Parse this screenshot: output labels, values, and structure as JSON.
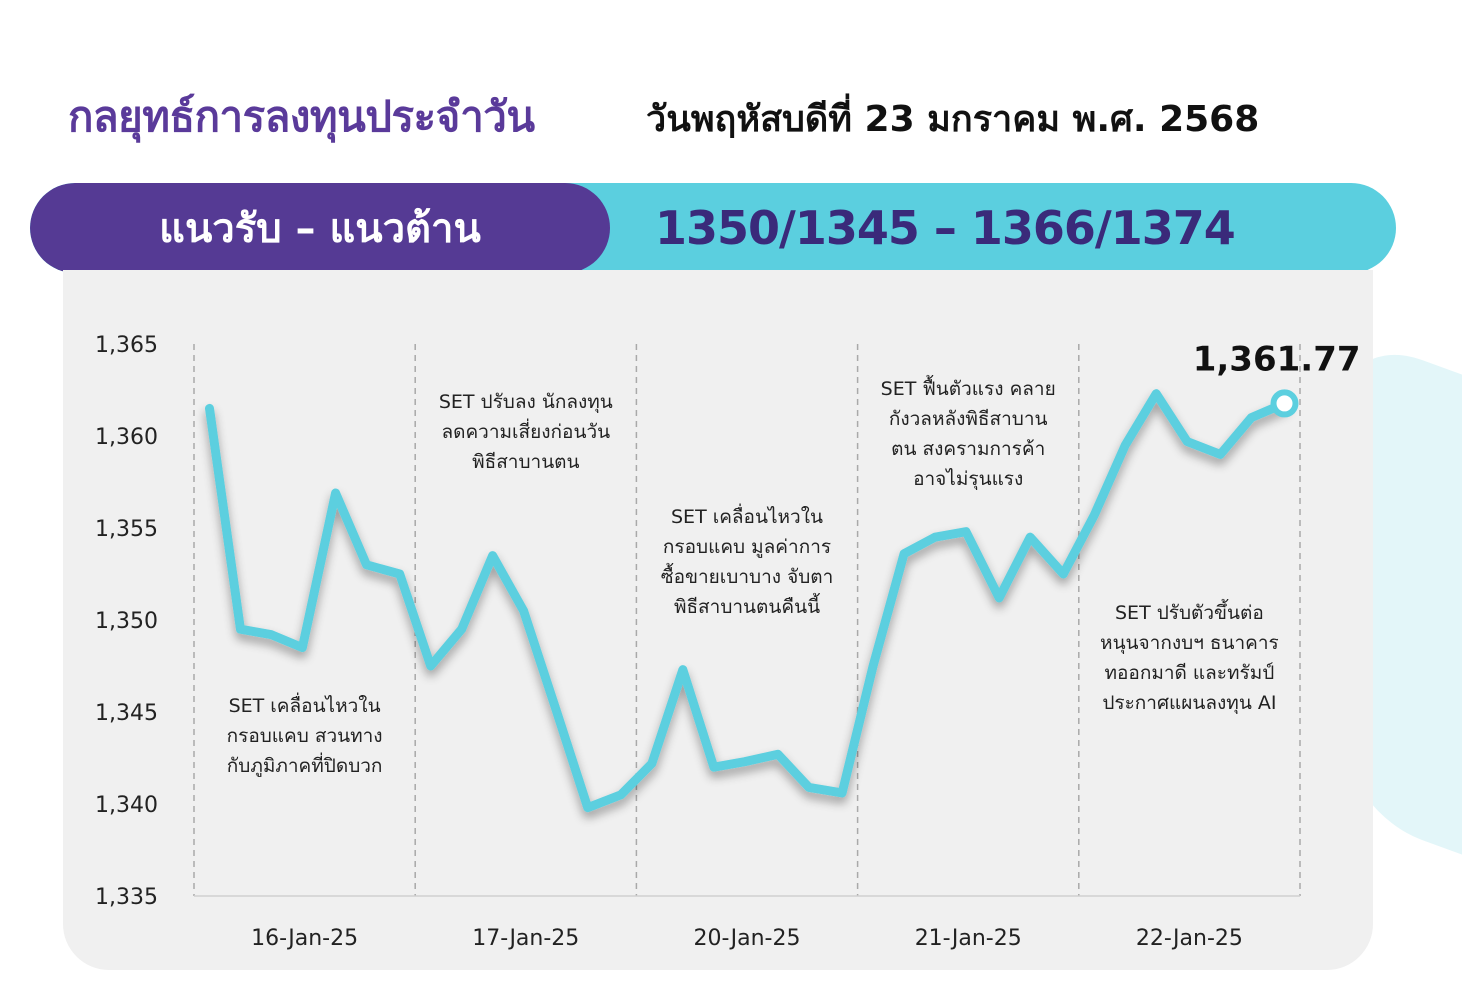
{
  "header": {
    "title": "กลยุทธ์การลงทุนประจำวัน",
    "date": "วันพฤหัสบดีที่ 23 มกราคม พ.ศ. 2568"
  },
  "band": {
    "label": "แนวรับ – แนวต้าน",
    "value": "1350/1345 – 1366/1374"
  },
  "colors": {
    "purple": "#553a94",
    "title_purple": "#5a3a9a",
    "cyan": "#5bcfdf",
    "line": "#5ccfdf",
    "panel": "#f0f0f0"
  },
  "chart_data": {
    "type": "line",
    "ylim": [
      1335,
      1365
    ],
    "yticks": [
      1365,
      1360,
      1355,
      1350,
      1345,
      1340,
      1335
    ],
    "ytick_labels": [
      "1,365",
      "1,360",
      "1,355",
      "1,350",
      "1,345",
      "1,340",
      "1,335"
    ],
    "categories": [
      "16-Jan-25",
      "17-Jan-25",
      "20-Jan-25",
      "21-Jan-25",
      "22-Jan-25"
    ],
    "grid": "vertical dashed separators between days",
    "series": [
      {
        "values": [
          1361.5,
          1349.5,
          1349.2,
          1348.5,
          1356.9,
          1353.0,
          1352.5,
          1347.5,
          1349.5,
          1353.5,
          1350.5,
          1345.0,
          1339.8,
          1340.5,
          1342.2,
          1347.3,
          1342.0,
          1342.3,
          1342.7,
          1340.9,
          1340.6,
          1347.5,
          1353.6,
          1354.5,
          1354.8,
          1351.2,
          1354.5,
          1352.5,
          1355.7,
          1359.5,
          1362.3,
          1359.7,
          1359.0,
          1361.0,
          1361.77
        ],
        "x": [
          0.07,
          0.21,
          0.35,
          0.49,
          0.64,
          0.78,
          0.93,
          1.07,
          1.21,
          1.35,
          1.49,
          1.64,
          1.78,
          1.93,
          2.07,
          2.21,
          2.35,
          2.49,
          2.64,
          2.78,
          2.93,
          3.07,
          3.21,
          3.35,
          3.49,
          3.64,
          3.78,
          3.93,
          4.07,
          4.21,
          4.35,
          4.49,
          4.64,
          4.78,
          4.93
        ]
      }
    ],
    "last_value_label": "1,361.77",
    "annotations": [
      {
        "lines": [
          "SET เคลื่อนไหวใน",
          "กรอบแคบ สวนทาง",
          "กับภูมิภาคที่ปิดบวก"
        ]
      },
      {
        "lines": [
          "SET ปรับลง นักลงทุน",
          "ลดความเสี่ยงก่อนวัน",
          "พิธีสาบานตน"
        ]
      },
      {
        "lines": [
          "SET เคลื่อนไหวใน",
          "กรอบแคบ มูลค่าการ",
          "ซื้อขายเบาบาง จับตา",
          "พิธีสาบานตนคืนนี้"
        ]
      },
      {
        "lines": [
          "SET ฟื้นตัวแรง คลาย",
          "กังวลหลังพิธีสาบาน",
          "ตน สงครามการค้า",
          "อาจไม่รุนแรง"
        ]
      },
      {
        "lines": [
          "SET ปรับตัวขึ้นต่อ",
          "หนุนจากงบฯ ธนาคาร",
          "ทออกมาดี และทรัมป์",
          "ประกาศแผนลงทุน AI"
        ]
      }
    ]
  }
}
